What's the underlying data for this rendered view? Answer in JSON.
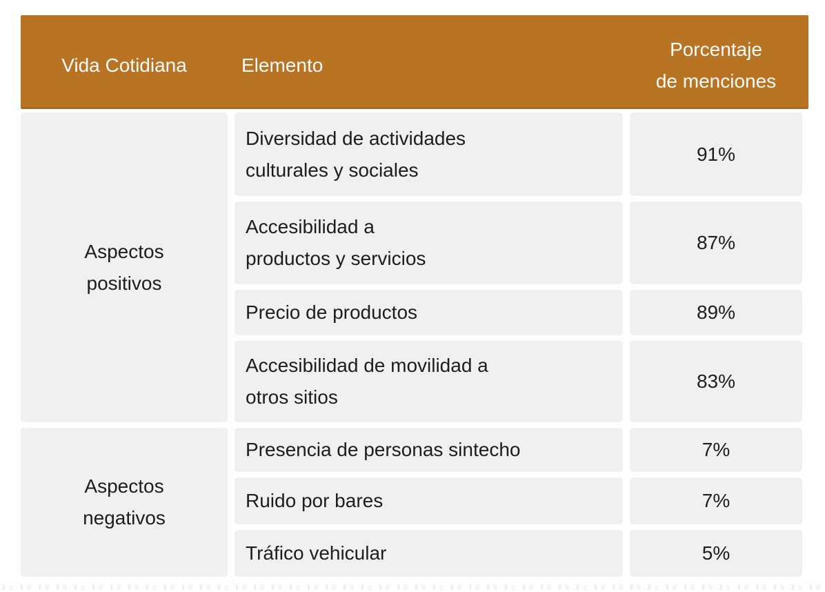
{
  "palette": {
    "header_bg": "#b97423",
    "header_border": "#a8681d",
    "header_text": "#fcfcfc",
    "cell_bg": "#f1f0f0",
    "body_text": "#1d1d1d",
    "gutter": "#ffffff"
  },
  "table": {
    "headers": {
      "col1": "Vida Cotidiana",
      "col2": "Elemento",
      "col3": "Porcentaje\nde menciones"
    },
    "sections": [
      {
        "group": "Aspectos\npositivos",
        "rows": [
          {
            "element": "Diversidad de actividades\nculturales y sociales",
            "percentage": "91%"
          },
          {
            "element": "Accesibilidad a\nproductos y servicios",
            "percentage": "87%"
          },
          {
            "element": "Precio de productos",
            "percentage": "89%"
          },
          {
            "element": "Accesibilidad de movilidad a\notros sitios",
            "percentage": "83%"
          }
        ]
      },
      {
        "group": "Aspectos\nnegativos",
        "rows": [
          {
            "element": "Presencia de personas sintecho",
            "percentage": "7%"
          },
          {
            "element": "Ruido por bares",
            "percentage": "7%"
          },
          {
            "element": "Tráfico vehicular",
            "percentage": "5%"
          }
        ]
      }
    ]
  },
  "chart_data": {
    "type": "table",
    "title": "",
    "columns": [
      "Vida Cotidiana",
      "Elemento",
      "Porcentaje de menciones"
    ],
    "rows": [
      [
        "Aspectos positivos",
        "Diversidad de actividades culturales y sociales",
        "91%"
      ],
      [
        "Aspectos positivos",
        "Accesibilidad a productos y servicios",
        "87%"
      ],
      [
        "Aspectos positivos",
        "Precio de productos",
        "89%"
      ],
      [
        "Aspectos positivos",
        "Accesibilidad de movilidad a otros sitios",
        "83%"
      ],
      [
        "Aspectos negativos",
        "Presencia de personas sintecho",
        "7%"
      ],
      [
        "Aspectos negativos",
        "Ruido por bares",
        "7%"
      ],
      [
        "Aspectos negativos",
        "Tráfico vehicular",
        "5%"
      ]
    ],
    "values_pct": [
      91,
      87,
      89,
      83,
      7,
      7,
      5
    ],
    "layout": "first column merged per section; light-gray cells on white gutters; ochre header band"
  }
}
